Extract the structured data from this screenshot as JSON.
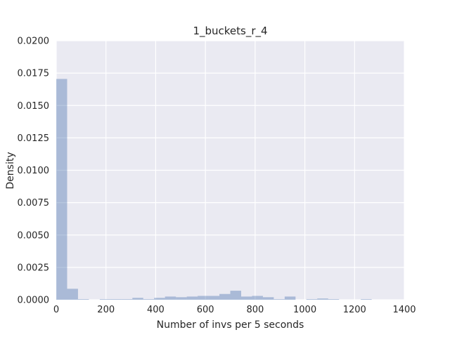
{
  "chart_data": {
    "type": "bar",
    "title": "1_buckets_r_4",
    "xlabel": "Number of invs per 5 seconds",
    "ylabel": "Density",
    "xlim": [
      0,
      1400
    ],
    "ylim": [
      0,
      0.02
    ],
    "xticks": [
      "0",
      "200",
      "400",
      "600",
      "800",
      "1000",
      "1200",
      "1400"
    ],
    "xtick_values": [
      0,
      200,
      400,
      600,
      800,
      1000,
      1200,
      1400
    ],
    "yticks": [
      "0.0000",
      "0.0025",
      "0.0050",
      "0.0075",
      "0.0100",
      "0.0125",
      "0.0150",
      "0.0175",
      "0.0200"
    ],
    "ytick_values": [
      0,
      0.0025,
      0.005,
      0.0075,
      0.01,
      0.0125,
      0.015,
      0.0175,
      0.02
    ],
    "grid": true,
    "bar_color": "#4c72b0",
    "background_color": "#eaeaf2",
    "bins": [
      {
        "start": 0,
        "end": 43.8,
        "density": 0.01705
      },
      {
        "start": 43.8,
        "end": 87.5,
        "density": 0.00085
      },
      {
        "start": 87.5,
        "end": 131.3,
        "density": 5e-05
      },
      {
        "start": 131.3,
        "end": 175,
        "density": 0.0
      },
      {
        "start": 175,
        "end": 218.8,
        "density": 5e-05
      },
      {
        "start": 218.8,
        "end": 262.5,
        "density": 5e-05
      },
      {
        "start": 262.5,
        "end": 306.3,
        "density": 5e-05
      },
      {
        "start": 306.3,
        "end": 350,
        "density": 0.00015
      },
      {
        "start": 350,
        "end": 393.8,
        "density": 5e-05
      },
      {
        "start": 393.8,
        "end": 437.5,
        "density": 0.00015
      },
      {
        "start": 437.5,
        "end": 481.3,
        "density": 0.00025
      },
      {
        "start": 481.3,
        "end": 525,
        "density": 0.0002
      },
      {
        "start": 525,
        "end": 568.8,
        "density": 0.00025
      },
      {
        "start": 568.8,
        "end": 612.5,
        "density": 0.0003
      },
      {
        "start": 612.5,
        "end": 656.3,
        "density": 0.0003
      },
      {
        "start": 656.3,
        "end": 700,
        "density": 0.00045
      },
      {
        "start": 700,
        "end": 743.8,
        "density": 0.0007
      },
      {
        "start": 743.8,
        "end": 787.5,
        "density": 0.00025
      },
      {
        "start": 787.5,
        "end": 831.3,
        "density": 0.0003
      },
      {
        "start": 831.3,
        "end": 875,
        "density": 0.0002
      },
      {
        "start": 875,
        "end": 918.8,
        "density": 5e-05
      },
      {
        "start": 918.8,
        "end": 962.5,
        "density": 0.00025
      },
      {
        "start": 962.5,
        "end": 1006.3,
        "density": 0.0
      },
      {
        "start": 1006.3,
        "end": 1050,
        "density": 5e-05
      },
      {
        "start": 1050,
        "end": 1093.8,
        "density": 0.0001
      },
      {
        "start": 1093.8,
        "end": 1137.5,
        "density": 5e-05
      },
      {
        "start": 1137.5,
        "end": 1181.3,
        "density": 0.0
      },
      {
        "start": 1181.3,
        "end": 1225,
        "density": 0.0
      },
      {
        "start": 1225,
        "end": 1268.8,
        "density": 5e-05
      }
    ]
  }
}
